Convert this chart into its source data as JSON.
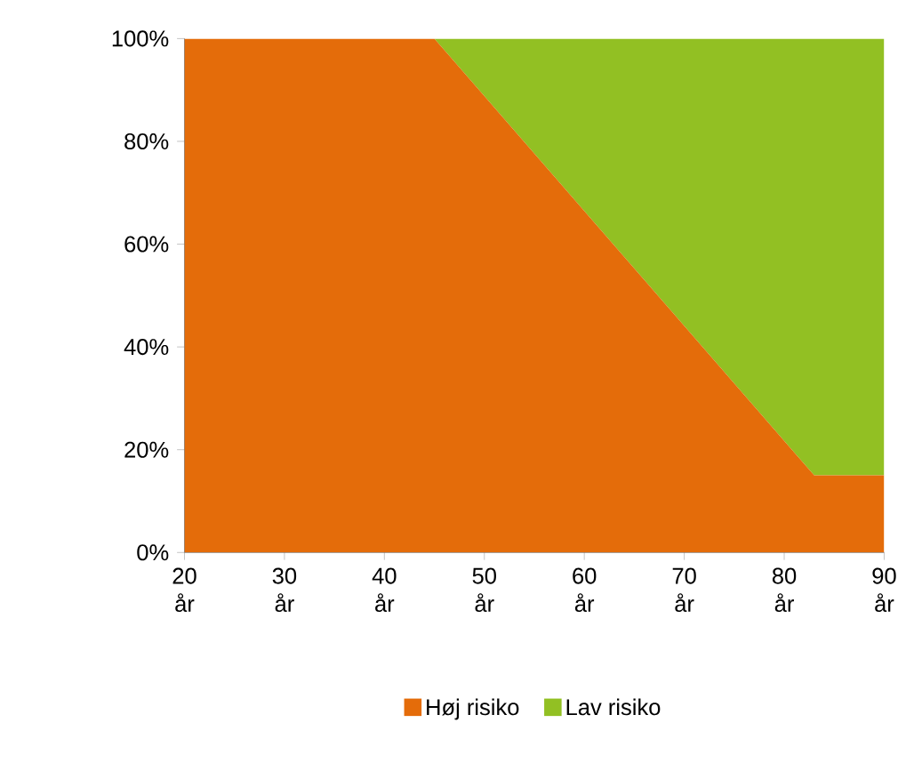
{
  "chart_data": {
    "type": "area",
    "stacked": true,
    "x": [
      20,
      45,
      83,
      90
    ],
    "series": [
      {
        "name": "Høj risiko",
        "color": "#e46c0a",
        "values": [
          100,
          100,
          15,
          15
        ]
      },
      {
        "name": "Lav risiko",
        "color": "#92c023",
        "values": [
          0,
          0,
          85,
          85
        ]
      }
    ],
    "xlim": [
      20,
      90
    ],
    "ylim": [
      0,
      100
    ],
    "xticks": [
      {
        "value": 20,
        "label": "20 år"
      },
      {
        "value": 30,
        "label": "30 år"
      },
      {
        "value": 40,
        "label": "40 år"
      },
      {
        "value": 50,
        "label": "50 år"
      },
      {
        "value": 60,
        "label": "60 år"
      },
      {
        "value": 70,
        "label": "70 år"
      },
      {
        "value": 80,
        "label": "80 år"
      },
      {
        "value": 90,
        "label": "90 år"
      }
    ],
    "yticks": [
      {
        "value": 0,
        "label": "0%"
      },
      {
        "value": 20,
        "label": "20%"
      },
      {
        "value": 40,
        "label": "40%"
      },
      {
        "value": 60,
        "label": "60%"
      },
      {
        "value": 80,
        "label": "80%"
      },
      {
        "value": 100,
        "label": "100%"
      }
    ],
    "legend": "bottom"
  }
}
